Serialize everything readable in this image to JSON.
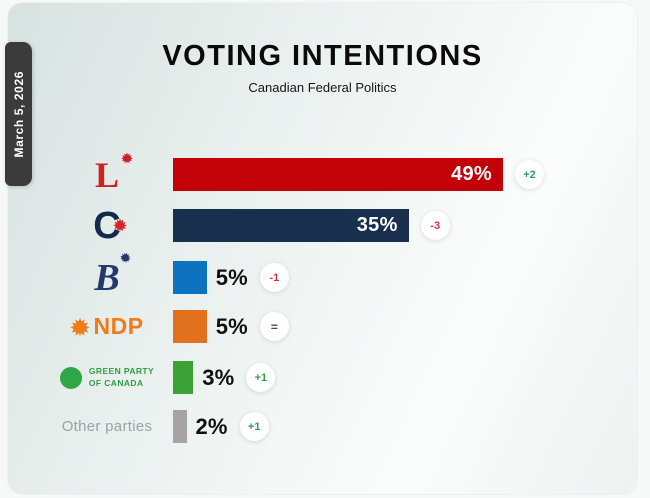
{
  "page": {
    "date_tab": "March 5, 2026"
  },
  "header": {
    "title": "VOTING INTENTIONS",
    "subtitle": "Canadian Federal Politics"
  },
  "logos": {
    "liberal": {
      "letter": "L"
    },
    "conservative": {
      "letter": "C"
    },
    "bloc": {
      "letter": "B"
    },
    "ndp": {
      "text": "NDP"
    },
    "green": {
      "line1": "GREEN PARTY",
      "line2": "OF CANADA"
    },
    "other": {
      "text": "Other parties"
    }
  },
  "chart_data": {
    "type": "bar",
    "orientation": "horizontal",
    "title": "VOTING INTENTIONS",
    "subtitle": "Canadian Federal Politics",
    "unit": "%",
    "xlim": [
      0,
      52
    ],
    "grid": false,
    "categories": [
      "Liberal Party",
      "Conservative Party",
      "Bloc Québécois",
      "NDP",
      "Green Party of Canada",
      "Other parties"
    ],
    "values": [
      49,
      35,
      5,
      5,
      3,
      2
    ],
    "deltas": [
      "+2",
      "-3",
      "-1",
      "=",
      "+1",
      "+1"
    ],
    "parties": [
      {
        "name": "Liberal Party",
        "logo": "liberal",
        "value": 49,
        "value_label": "49%",
        "delta": "+2",
        "trend": "up",
        "color": "#c30109",
        "label_inside": true
      },
      {
        "name": "Conservative Party",
        "logo": "conservative",
        "value": 35,
        "value_label": "35%",
        "delta": "-3",
        "trend": "down",
        "color": "#18304e",
        "label_inside": true
      },
      {
        "name": "Bloc Québécois",
        "logo": "bloc",
        "value": 5,
        "value_label": "5%",
        "delta": "-1",
        "trend": "down",
        "color": "#0d72c0",
        "label_inside": false
      },
      {
        "name": "NDP",
        "logo": "ndp",
        "value": 5,
        "value_label": "5%",
        "delta": "=",
        "trend": "flat",
        "color": "#e2711d",
        "label_inside": false
      },
      {
        "name": "Green Party of Canada",
        "logo": "green",
        "value": 3,
        "value_label": "3%",
        "delta": "+1",
        "trend": "up",
        "color": "#3ba335",
        "label_inside": false
      },
      {
        "name": "Other parties",
        "logo": "other",
        "value": 2,
        "value_label": "2%",
        "delta": "+1",
        "trend": "up",
        "color": "#a7a3a4",
        "label_inside": false
      }
    ],
    "colors": {
      "delta_up": "#2f9e4e",
      "delta_down": "#d63340",
      "delta_flat": "#4d4d4d",
      "badge_bg": "#ffffff",
      "date_tab_bg": "#3b3b3c"
    }
  }
}
